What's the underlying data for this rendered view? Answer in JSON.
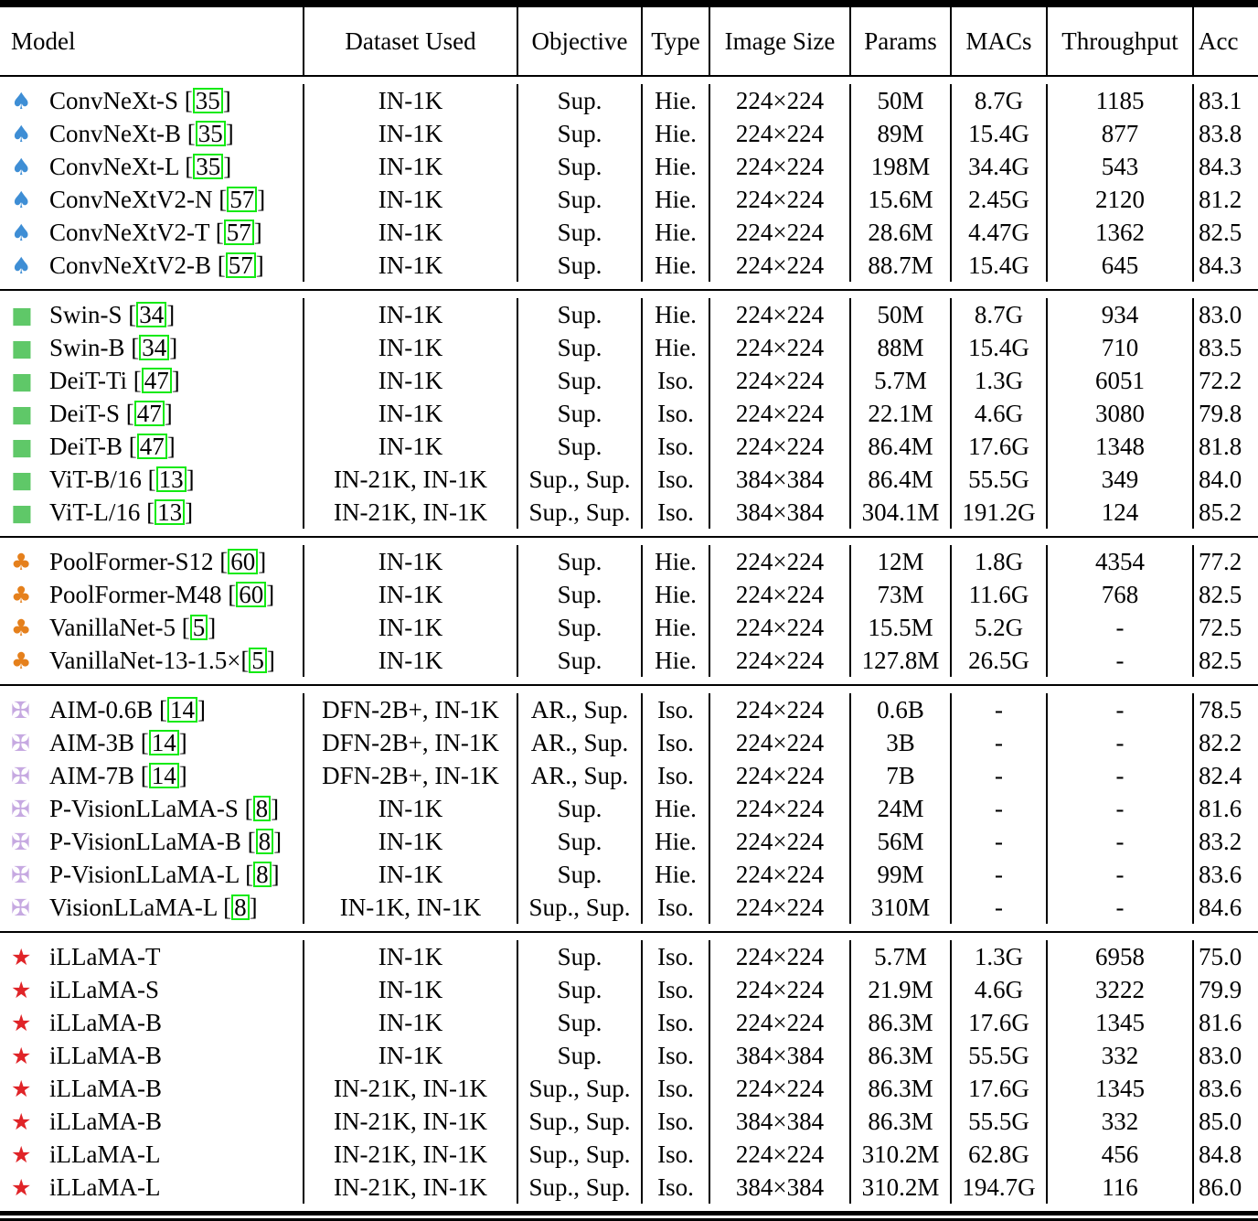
{
  "table": {
    "columns": [
      "Model",
      "Dataset Used",
      "Objective",
      "Type",
      "Image Size",
      "Params",
      "MACs",
      "Throughput",
      "Acc"
    ],
    "brackets": [
      "[",
      "]"
    ],
    "colors": {
      "cite_border": "#12ea12",
      "spade": "#3e8ed5",
      "square": "#5fc868",
      "club": "#e5801c",
      "maltese_cross": "#c6a9e1",
      "star": "#e02428"
    }
  },
  "groups": [
    {
      "icon": "spade",
      "icon_glyph": "♠",
      "icon_color": "#3e8ed5",
      "rows": [
        {
          "model": "ConvNeXt-S",
          "cite": "35",
          "dataset": "IN-1K",
          "objective": "Sup.",
          "type": "Hie.",
          "image_size": "224×224",
          "params": "50M",
          "macs": "8.7G",
          "throughput": "1185",
          "acc": "83.1"
        },
        {
          "model": "ConvNeXt-B",
          "cite": "35",
          "dataset": "IN-1K",
          "objective": "Sup.",
          "type": "Hie.",
          "image_size": "224×224",
          "params": "89M",
          "macs": "15.4G",
          "throughput": "877",
          "acc": "83.8"
        },
        {
          "model": "ConvNeXt-L",
          "cite": "35",
          "dataset": "IN-1K",
          "objective": "Sup.",
          "type": "Hie.",
          "image_size": "224×224",
          "params": "198M",
          "macs": "34.4G",
          "throughput": "543",
          "acc": "84.3"
        },
        {
          "model": "ConvNeXtV2-N",
          "cite": "57",
          "dataset": "IN-1K",
          "objective": "Sup.",
          "type": "Hie.",
          "image_size": "224×224",
          "params": "15.6M",
          "macs": "2.45G",
          "throughput": "2120",
          "acc": "81.2"
        },
        {
          "model": "ConvNeXtV2-T",
          "cite": "57",
          "dataset": "IN-1K",
          "objective": "Sup.",
          "type": "Hie.",
          "image_size": "224×224",
          "params": "28.6M",
          "macs": "4.47G",
          "throughput": "1362",
          "acc": "82.5"
        },
        {
          "model": "ConvNeXtV2-B",
          "cite": "57",
          "dataset": "IN-1K",
          "objective": "Sup.",
          "type": "Hie.",
          "image_size": "224×224",
          "params": "88.7M",
          "macs": "15.4G",
          "throughput": "645",
          "acc": "84.3"
        }
      ]
    },
    {
      "icon": "square",
      "icon_glyph": "■",
      "icon_color": "#5fc868",
      "rows": [
        {
          "model": "Swin-S",
          "cite": "34",
          "dataset": "IN-1K",
          "objective": "Sup.",
          "type": "Hie.",
          "image_size": "224×224",
          "params": "50M",
          "macs": "8.7G",
          "throughput": "934",
          "acc": "83.0"
        },
        {
          "model": "Swin-B",
          "cite": "34",
          "dataset": "IN-1K",
          "objective": "Sup.",
          "type": "Hie.",
          "image_size": "224×224",
          "params": "88M",
          "macs": "15.4G",
          "throughput": "710",
          "acc": "83.5"
        },
        {
          "model": "DeiT-Ti",
          "cite": "47",
          "dataset": "IN-1K",
          "objective": "Sup.",
          "type": "Iso.",
          "image_size": "224×224",
          "params": "5.7M",
          "macs": "1.3G",
          "throughput": "6051",
          "acc": "72.2"
        },
        {
          "model": "DeiT-S",
          "cite": "47",
          "dataset": "IN-1K",
          "objective": "Sup.",
          "type": "Iso.",
          "image_size": "224×224",
          "params": "22.1M",
          "macs": "4.6G",
          "throughput": "3080",
          "acc": "79.8"
        },
        {
          "model": "DeiT-B",
          "cite": "47",
          "dataset": "IN-1K",
          "objective": "Sup.",
          "type": "Iso.",
          "image_size": "224×224",
          "params": "86.4M",
          "macs": "17.6G",
          "throughput": "1348",
          "acc": "81.8"
        },
        {
          "model": "ViT-B/16",
          "cite": "13",
          "dataset": "IN-21K, IN-1K",
          "objective": "Sup., Sup.",
          "type": "Iso.",
          "image_size": "384×384",
          "params": "86.4M",
          "macs": "55.5G",
          "throughput": "349",
          "acc": "84.0"
        },
        {
          "model": "ViT-L/16",
          "cite": "13",
          "dataset": "IN-21K, IN-1K",
          "objective": "Sup., Sup.",
          "type": "Iso.",
          "image_size": "384×384",
          "params": "304.1M",
          "macs": "191.2G",
          "throughput": "124",
          "acc": "85.2"
        }
      ]
    },
    {
      "icon": "club",
      "icon_glyph": "♣",
      "icon_color": "#e5801c",
      "rows": [
        {
          "model": "PoolFormer-S12",
          "cite": "60",
          "dataset": "IN-1K",
          "objective": "Sup.",
          "type": "Hie.",
          "image_size": "224×224",
          "params": "12M",
          "macs": "1.8G",
          "throughput": "4354",
          "acc": "77.2"
        },
        {
          "model": "PoolFormer-M48",
          "cite": "60",
          "dataset": "IN-1K",
          "objective": "Sup.",
          "type": "Hie.",
          "image_size": "224×224",
          "params": "73M",
          "macs": "11.6G",
          "throughput": "768",
          "acc": "82.5"
        },
        {
          "model": "VanillaNet-5",
          "cite": "5",
          "dataset": "IN-1K",
          "objective": "Sup.",
          "type": "Hie.",
          "image_size": "224×224",
          "params": "15.5M",
          "macs": "5.2G",
          "throughput": "-",
          "acc": "72.5"
        },
        {
          "model": "VanillaNet-13-1.5×",
          "cite": "5",
          "dataset": "IN-1K",
          "objective": "Sup.",
          "type": "Hie.",
          "image_size": "224×224",
          "params": "127.8M",
          "macs": "26.5G",
          "throughput": "-",
          "acc": "82.5"
        }
      ]
    },
    {
      "icon": "maltese-cross",
      "icon_glyph": "✠",
      "icon_color": "#c6a9e1",
      "rows": [
        {
          "model": "AIM-0.6B",
          "cite": "14",
          "dataset": "DFN-2B+, IN-1K",
          "objective": "AR., Sup.",
          "type": "Iso.",
          "image_size": "224×224",
          "params": "0.6B",
          "macs": "-",
          "throughput": "-",
          "acc": "78.5"
        },
        {
          "model": "AIM-3B",
          "cite": "14",
          "dataset": "DFN-2B+, IN-1K",
          "objective": "AR., Sup.",
          "type": "Iso.",
          "image_size": "224×224",
          "params": "3B",
          "macs": "-",
          "throughput": "-",
          "acc": "82.2"
        },
        {
          "model": "AIM-7B",
          "cite": "14",
          "dataset": "DFN-2B+, IN-1K",
          "objective": "AR., Sup.",
          "type": "Iso.",
          "image_size": "224×224",
          "params": "7B",
          "macs": "-",
          "throughput": "-",
          "acc": "82.4"
        },
        {
          "model": "P-VisionLLaMA-S",
          "cite": "8",
          "dataset": "IN-1K",
          "objective": "Sup.",
          "type": "Hie.",
          "image_size": "224×224",
          "params": "24M",
          "macs": "-",
          "throughput": "-",
          "acc": "81.6"
        },
        {
          "model": "P-VisionLLaMA-B",
          "cite": "8",
          "dataset": "IN-1K",
          "objective": "Sup.",
          "type": "Hie.",
          "image_size": "224×224",
          "params": "56M",
          "macs": "-",
          "throughput": "-",
          "acc": "83.2"
        },
        {
          "model": "P-VisionLLaMA-L",
          "cite": "8",
          "dataset": "IN-1K",
          "objective": "Sup.",
          "type": "Hie.",
          "image_size": "224×224",
          "params": "99M",
          "macs": "-",
          "throughput": "-",
          "acc": "83.6"
        },
        {
          "model": "VisionLLaMA-L",
          "cite": "8",
          "dataset": "IN-1K, IN-1K",
          "objective": "Sup., Sup.",
          "type": "Iso.",
          "image_size": "224×224",
          "params": "310M",
          "macs": "-",
          "throughput": "-",
          "acc": "84.6"
        }
      ]
    },
    {
      "icon": "star",
      "icon_glyph": "★",
      "icon_color": "#e02428",
      "rows": [
        {
          "model": "iLLaMA-T",
          "cite": null,
          "dataset": "IN-1K",
          "objective": "Sup.",
          "type": "Iso.",
          "image_size": "224×224",
          "params": "5.7M",
          "macs": "1.3G",
          "throughput": "6958",
          "acc": "75.0"
        },
        {
          "model": "iLLaMA-S",
          "cite": null,
          "dataset": "IN-1K",
          "objective": "Sup.",
          "type": "Iso.",
          "image_size": "224×224",
          "params": "21.9M",
          "macs": "4.6G",
          "throughput": "3222",
          "acc": "79.9"
        },
        {
          "model": "iLLaMA-B",
          "cite": null,
          "dataset": "IN-1K",
          "objective": "Sup.",
          "type": "Iso.",
          "image_size": "224×224",
          "params": "86.3M",
          "macs": "17.6G",
          "throughput": "1345",
          "acc": "81.6"
        },
        {
          "model": "iLLaMA-B",
          "cite": null,
          "dataset": "IN-1K",
          "objective": "Sup.",
          "type": "Iso.",
          "image_size": "384×384",
          "params": "86.3M",
          "macs": "55.5G",
          "throughput": "332",
          "acc": "83.0"
        },
        {
          "model": "iLLaMA-B",
          "cite": null,
          "dataset": "IN-21K, IN-1K",
          "objective": "Sup., Sup.",
          "type": "Iso.",
          "image_size": "224×224",
          "params": "86.3M",
          "macs": "17.6G",
          "throughput": "1345",
          "acc": "83.6"
        },
        {
          "model": "iLLaMA-B",
          "cite": null,
          "dataset": "IN-21K, IN-1K",
          "objective": "Sup., Sup.",
          "type": "Iso.",
          "image_size": "384×384",
          "params": "86.3M",
          "macs": "55.5G",
          "throughput": "332",
          "acc": "85.0"
        },
        {
          "model": "iLLaMA-L",
          "cite": null,
          "dataset": "IN-21K, IN-1K",
          "objective": "Sup., Sup.",
          "type": "Iso.",
          "image_size": "224×224",
          "params": "310.2M",
          "macs": "62.8G",
          "throughput": "456",
          "acc": "84.8"
        },
        {
          "model": "iLLaMA-L",
          "cite": null,
          "dataset": "IN-21K, IN-1K",
          "objective": "Sup., Sup.",
          "type": "Iso.",
          "image_size": "384×384",
          "params": "310.2M",
          "macs": "194.7G",
          "throughput": "116",
          "acc": "86.0"
        }
      ]
    }
  ]
}
